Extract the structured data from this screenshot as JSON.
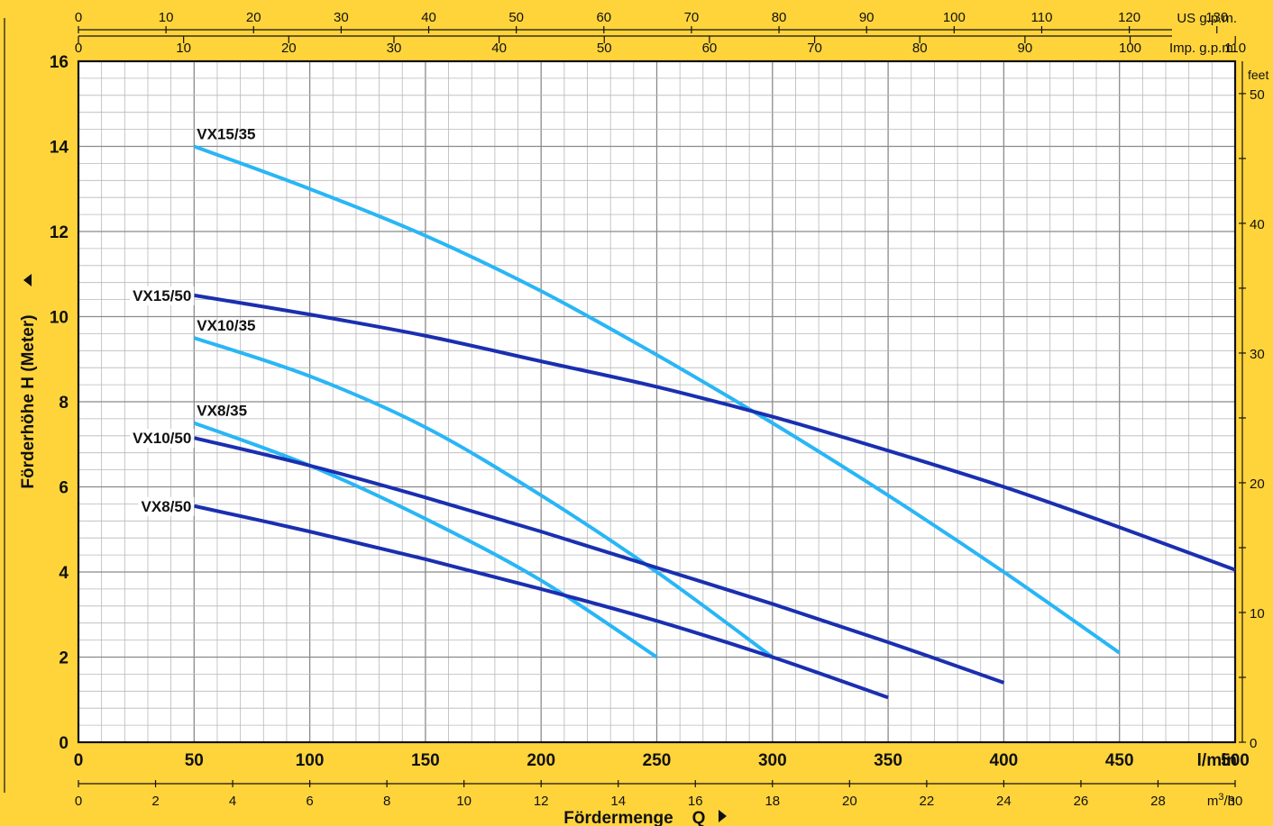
{
  "chart_data": {
    "type": "line",
    "xlabel": "Fördermenge",
    "xlabel_symbol": "Q",
    "ylabel": "Förderhöhe",
    "ylabel_symbol": "H",
    "ylabel_unit": "(Meter)",
    "x_unit": "l/min",
    "xlim": [
      0,
      500
    ],
    "ylim": [
      0,
      16
    ],
    "grid": true,
    "x_ticks": [
      0,
      50,
      100,
      150,
      200,
      250,
      300,
      350,
      400,
      450,
      500
    ],
    "y_ticks": [
      0,
      2,
      4,
      6,
      8,
      10,
      12,
      14,
      16
    ],
    "secondary_axes": {
      "us_gpm": {
        "label": "US g.p.m.",
        "ticks": [
          0,
          10,
          20,
          30,
          40,
          50,
          60,
          70,
          80,
          90,
          100,
          110,
          120,
          130
        ]
      },
      "imp_gpm": {
        "label": "Imp. g.p.m.",
        "ticks": [
          0,
          10,
          20,
          30,
          40,
          50,
          60,
          70,
          80,
          90,
          100,
          110
        ]
      },
      "m3h": {
        "label": "m³/h",
        "ticks": [
          0,
          2,
          4,
          6,
          8,
          10,
          12,
          14,
          16,
          18,
          20,
          22,
          24,
          26,
          28,
          30
        ]
      },
      "feet": {
        "label": "feet",
        "ticks": [
          0,
          10,
          20,
          30,
          40,
          50
        ]
      }
    },
    "series": [
      {
        "name": "VX15/35",
        "color": "#29B6F6",
        "x": [
          50,
          100,
          150,
          200,
          250,
          300,
          350,
          400,
          450
        ],
        "y": [
          14.0,
          13.0,
          11.9,
          10.6,
          9.1,
          7.5,
          5.8,
          4.0,
          2.1
        ]
      },
      {
        "name": "VX15/50",
        "color": "#1A2FB0",
        "x": [
          50,
          100,
          150,
          200,
          250,
          300,
          350,
          400,
          450,
          500
        ],
        "y": [
          10.5,
          10.05,
          9.55,
          8.95,
          8.35,
          7.65,
          6.85,
          6.0,
          5.05,
          4.05
        ]
      },
      {
        "name": "VX10/35",
        "color": "#29B6F6",
        "x": [
          50,
          100,
          150,
          200,
          250,
          300
        ],
        "y": [
          9.5,
          8.6,
          7.4,
          5.8,
          4.0,
          2.0
        ]
      },
      {
        "name": "VX8/35",
        "color": "#29B6F6",
        "x": [
          50,
          100,
          150,
          200,
          250
        ],
        "y": [
          7.5,
          6.5,
          5.25,
          3.8,
          2.0
        ]
      },
      {
        "name": "VX10/50",
        "color": "#1A2FB0",
        "x": [
          50,
          100,
          150,
          200,
          250,
          300,
          350,
          400
        ],
        "y": [
          7.15,
          6.5,
          5.75,
          4.95,
          4.1,
          3.25,
          2.35,
          1.4
        ]
      },
      {
        "name": "VX8/50",
        "color": "#1A2FB0",
        "x": [
          50,
          100,
          150,
          200,
          250,
          300,
          350
        ],
        "y": [
          5.55,
          4.95,
          4.3,
          3.6,
          2.85,
          2.0,
          1.05
        ]
      }
    ]
  }
}
